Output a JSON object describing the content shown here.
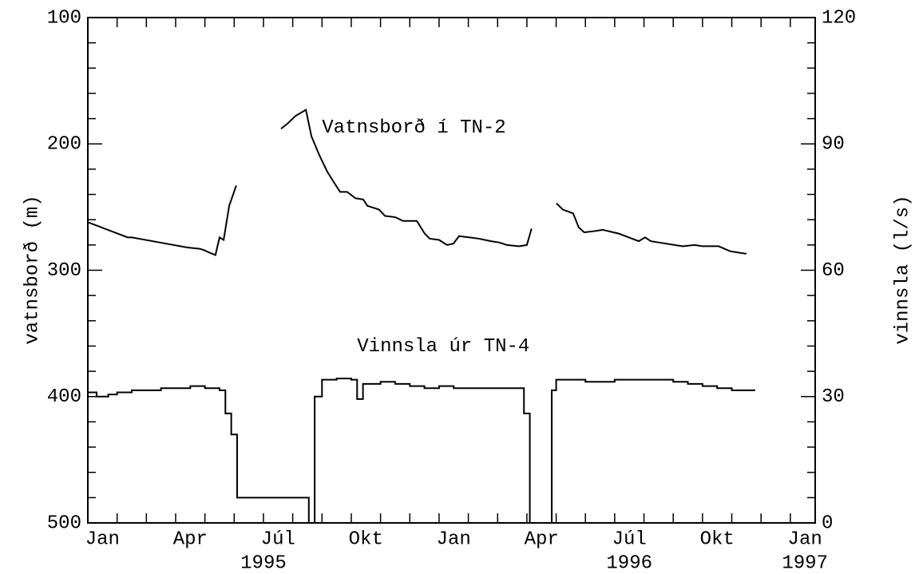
{
  "chart_data": {
    "type": "line",
    "y_label": "vatnsborð (m)",
    "y2_label": "vinnsla (l/s)",
    "annotations": [
      {
        "text": "Vatnsborð í TN-2",
        "x": 8.0,
        "y": 187
      },
      {
        "text": "Vinnsla úr TN-4",
        "x": 9.2,
        "y": 360
      }
    ],
    "xlim": [
      0,
      24.85
    ],
    "xticks": [
      {
        "value": 0.5,
        "label": "Jan"
      },
      {
        "value": 3.5,
        "label": "Apr"
      },
      {
        "value": 6.5,
        "label": "Júl"
      },
      {
        "value": 9.5,
        "label": "Okt"
      },
      {
        "value": 12.5,
        "label": "Jan"
      },
      {
        "value": 15.5,
        "label": "Apr"
      },
      {
        "value": 18.5,
        "label": "Júl"
      },
      {
        "value": 21.5,
        "label": "Okt"
      },
      {
        "value": 24.5,
        "label": "Jan"
      }
    ],
    "xticks_minor": [
      1,
      2,
      3,
      4,
      5,
      6,
      7,
      8,
      9,
      10,
      11,
      12,
      13,
      14,
      15,
      16,
      17,
      18,
      19,
      20,
      21,
      22,
      23,
      24
    ],
    "year_labels": [
      {
        "value": 6.0,
        "label": "1995"
      },
      {
        "value": 18.5,
        "label": "1996"
      },
      {
        "value": 24.5,
        "label": "1997"
      }
    ],
    "ylim": [
      500,
      100
    ],
    "yticks": [
      100,
      200,
      300,
      400,
      500
    ],
    "yticks_minor": [
      120,
      140,
      160,
      180,
      220,
      240,
      260,
      280,
      320,
      340,
      360,
      380,
      420,
      440,
      460,
      480
    ],
    "y2lim": [
      0,
      120
    ],
    "y2ticks": [
      0,
      30,
      60,
      90,
      120
    ],
    "y2ticks_minor": [
      6,
      12,
      18,
      24,
      36,
      42,
      48,
      54,
      66,
      72,
      78,
      84,
      96,
      102,
      108,
      114
    ],
    "series": [
      {
        "name": "Vatnsborð í TN-2",
        "color": "#000000",
        "axis": "y",
        "step": false,
        "x": [
          0,
          1.36,
          1.5,
          2.45,
          3.4,
          3.82,
          3.96,
          4.15,
          4.36,
          4.5,
          4.64,
          4.83,
          5.07,
          null,
          6.6,
          6.82,
          7.09,
          7.45,
          7.64,
          7.91,
          8.18,
          8.45,
          8.62,
          8.86,
          9.14,
          9.41,
          9.55,
          9.95,
          10.15,
          10.5,
          10.77,
          11.24,
          11.51,
          11.68,
          12.0,
          12.27,
          12.49,
          12.68,
          13.04,
          13.36,
          13.77,
          14.05,
          14.32,
          14.73,
          15.0,
          15.16,
          null,
          16.01,
          16.23,
          16.58,
          16.77,
          16.96,
          17.32,
          17.59,
          18.14,
          18.82,
          19.04,
          19.23,
          19.5,
          20.05,
          20.32,
          20.73,
          21.0,
          21.55,
          21.95,
          22.5
        ],
        "values": [
          262,
          274,
          274,
          278,
          282,
          283,
          284,
          286,
          288,
          274,
          276,
          249,
          233,
          null,
          188,
          184,
          178,
          173,
          194,
          209,
          222,
          232,
          238,
          238,
          243,
          244,
          249,
          252,
          257,
          258,
          261,
          261,
          271,
          275,
          276,
          280,
          279,
          273,
          274,
          275,
          277,
          278,
          280,
          281,
          280,
          267,
          null,
          247,
          252,
          255,
          266,
          270,
          269,
          268,
          271,
          277,
          274,
          277,
          278,
          280,
          281,
          280,
          281,
          281,
          285,
          287
        ]
      },
      {
        "name": "Vinnsla úr TN-4",
        "color": "#000000",
        "axis": "y2",
        "step": true,
        "x": [
          0,
          0.3,
          0.7,
          1.0,
          1.5,
          2.0,
          2.5,
          3.0,
          3.5,
          4.0,
          4.5,
          4.7,
          4.9,
          5.1,
          7.55,
          7.75,
          8.0,
          8.5,
          9.0,
          9.2,
          9.4,
          10.0,
          10.5,
          11.0,
          11.5,
          12.0,
          12.5,
          13.0,
          13.5,
          14.0,
          14.5,
          14.9,
          15.1,
          15.85,
          16.0,
          16.5,
          17.0,
          17.5,
          18.0,
          18.5,
          19.0,
          19.5,
          20.0,
          20.5,
          21.0,
          21.5,
          22.0,
          22.8
        ],
        "values": [
          31,
          30,
          30.5,
          31,
          31.5,
          31.5,
          32,
          32,
          32.5,
          32,
          31.5,
          26,
          21,
          6,
          0,
          30,
          34,
          34.3,
          34,
          29.4,
          33,
          33.5,
          33,
          32.5,
          32,
          32.5,
          32,
          32,
          32,
          32,
          32,
          26,
          0,
          31.5,
          34,
          34,
          33.5,
          33.5,
          34,
          34,
          34,
          34,
          33.5,
          33,
          32.5,
          32,
          31.5,
          31.5
        ]
      }
    ]
  }
}
